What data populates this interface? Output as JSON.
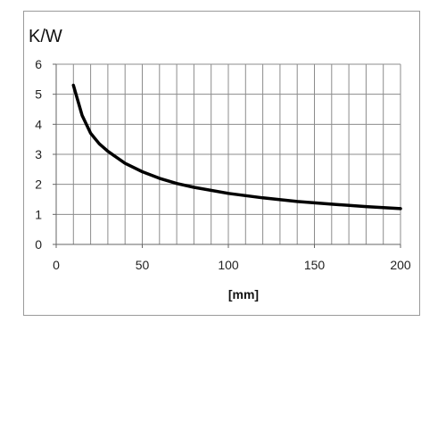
{
  "chart_data": {
    "type": "line",
    "ylabel": "K/W",
    "xlabel": "[mm]",
    "xlim": [
      0,
      200
    ],
    "ylim": [
      0,
      6
    ],
    "x_ticks": [
      0,
      50,
      100,
      150,
      200
    ],
    "y_ticks": [
      0,
      1,
      2,
      3,
      4,
      5,
      6
    ],
    "x_minor_step": 10,
    "y_minor_step": 1,
    "grid": true,
    "series": [
      {
        "color": "#000000",
        "x": [
          10,
          15,
          20,
          25,
          30,
          40,
          50,
          60,
          70,
          80,
          100,
          120,
          140,
          160,
          180,
          200
        ],
        "y": [
          5.3,
          4.3,
          3.7,
          3.35,
          3.1,
          2.7,
          2.42,
          2.2,
          2.03,
          1.9,
          1.7,
          1.55,
          1.43,
          1.34,
          1.26,
          1.19
        ]
      }
    ]
  }
}
